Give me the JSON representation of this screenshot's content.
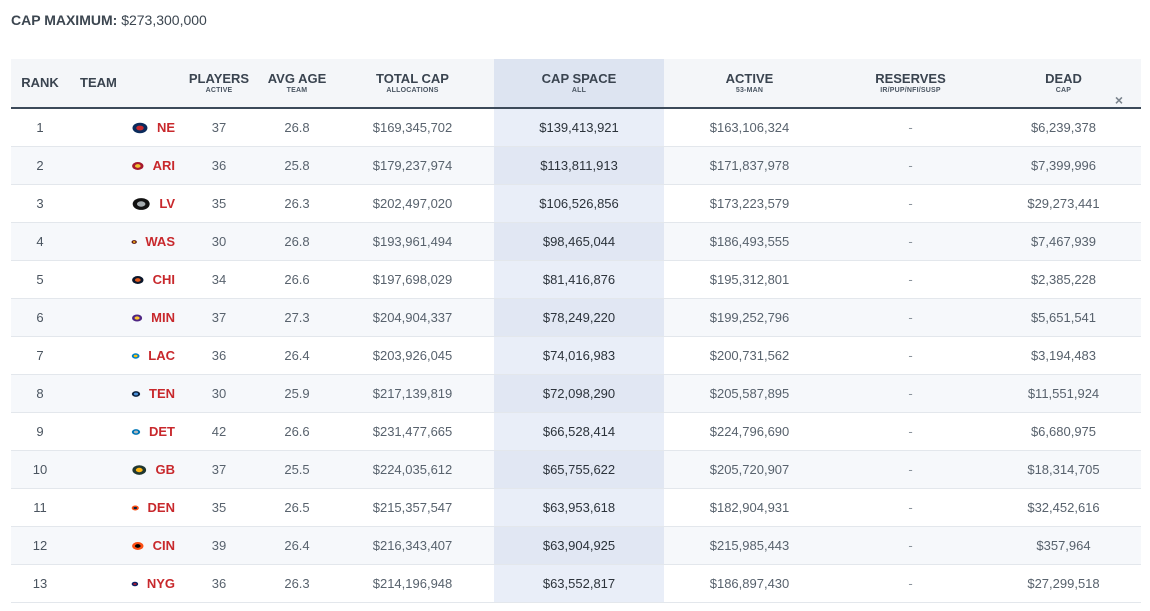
{
  "cap_max": {
    "label": "CAP MAXIMUM:",
    "value": "$273,300,000"
  },
  "headers": {
    "rank": "RANK",
    "team": "TEAM",
    "players": "PLAYERS",
    "players_sub": "ACTIVE",
    "avg_age": "AVG AGE",
    "avg_age_sub": "TEAM",
    "total_cap": "TOTAL CAP",
    "total_cap_sub": "ALLOCATIONS",
    "cap_space": "CAP SPACE",
    "cap_space_sub": "ALL",
    "active": "ACTIVE",
    "active_sub": "53-MAN",
    "reserves": "RESERVES",
    "reserves_sub": "IR/PUP/NFI/SUSP",
    "dead": "DEAD",
    "dead_sub": "CAP",
    "close": "×"
  },
  "rows": [
    {
      "rank": "1",
      "team": "NE",
      "players": "37",
      "age": "26.8",
      "total": "$169,345,702",
      "space": "$139,413,921",
      "active": "$163,106,324",
      "reserves": "-",
      "dead": "$6,239,378",
      "logo": "patriots-logo-icon",
      "c1": "#0b2b5c",
      "c2": "#c8282c"
    },
    {
      "rank": "2",
      "team": "ARI",
      "players": "36",
      "age": "25.8",
      "total": "$179,237,974",
      "space": "$113,811,913",
      "active": "$171,837,978",
      "reserves": "-",
      "dead": "$7,399,996",
      "logo": "cardinals-logo-icon",
      "c1": "#a6192e",
      "c2": "#f2c230"
    },
    {
      "rank": "3",
      "team": "LV",
      "players": "35",
      "age": "26.3",
      "total": "$202,497,020",
      "space": "$106,526,856",
      "active": "$173,223,579",
      "reserves": "-",
      "dead": "$29,273,441",
      "logo": "raiders-logo-icon",
      "c1": "#111111",
      "c2": "#a5acaf"
    },
    {
      "rank": "4",
      "team": "WAS",
      "players": "30",
      "age": "26.8",
      "total": "$193,961,494",
      "space": "$98,465,044",
      "active": "$186,493,555",
      "reserves": "-",
      "dead": "$7,467,939",
      "logo": "commanders-logo-icon",
      "c1": "#5a1414",
      "c2": "#ffb612"
    },
    {
      "rank": "5",
      "team": "CHI",
      "players": "34",
      "age": "26.6",
      "total": "$197,698,029",
      "space": "$81,416,876",
      "active": "$195,312,801",
      "reserves": "-",
      "dead": "$2,385,228",
      "logo": "bears-logo-icon",
      "c1": "#0b162a",
      "c2": "#e35a1e"
    },
    {
      "rank": "6",
      "team": "MIN",
      "players": "37",
      "age": "27.3",
      "total": "$204,904,337",
      "space": "$78,249,220",
      "active": "$199,252,796",
      "reserves": "-",
      "dead": "$5,651,541",
      "logo": "vikings-logo-icon",
      "c1": "#4f2683",
      "c2": "#ffc62f"
    },
    {
      "rank": "7",
      "team": "LAC",
      "players": "36",
      "age": "26.4",
      "total": "$203,926,045",
      "space": "$74,016,983",
      "active": "$200,731,562",
      "reserves": "-",
      "dead": "$3,194,483",
      "logo": "chargers-logo-icon",
      "c1": "#0080c6",
      "c2": "#ffc20e"
    },
    {
      "rank": "8",
      "team": "TEN",
      "players": "30",
      "age": "25.9",
      "total": "$217,139,819",
      "space": "$72,098,290",
      "active": "$205,587,895",
      "reserves": "-",
      "dead": "$11,551,924",
      "logo": "titans-logo-icon",
      "c1": "#0c2340",
      "c2": "#4b92db"
    },
    {
      "rank": "9",
      "team": "DET",
      "players": "42",
      "age": "26.6",
      "total": "$231,477,665",
      "space": "$66,528,414",
      "active": "$224,796,690",
      "reserves": "-",
      "dead": "$6,680,975",
      "logo": "lions-logo-icon",
      "c1": "#0076b6",
      "c2": "#b0b7bc"
    },
    {
      "rank": "10",
      "team": "GB",
      "players": "37",
      "age": "25.5",
      "total": "$224,035,612",
      "space": "$65,755,622",
      "active": "$205,720,907",
      "reserves": "-",
      "dead": "$18,314,705",
      "logo": "packers-logo-icon",
      "c1": "#203731",
      "c2": "#ffb612"
    },
    {
      "rank": "11",
      "team": "DEN",
      "players": "35",
      "age": "26.5",
      "total": "$215,357,547",
      "space": "$63,953,618",
      "active": "$182,904,931",
      "reserves": "-",
      "dead": "$32,452,616",
      "logo": "broncos-logo-icon",
      "c1": "#fb4f14",
      "c2": "#002244"
    },
    {
      "rank": "12",
      "team": "CIN",
      "players": "39",
      "age": "26.4",
      "total": "$216,343,407",
      "space": "$63,904,925",
      "active": "$215,985,443",
      "reserves": "-",
      "dead": "$357,964",
      "logo": "bengals-logo-icon",
      "c1": "#fb4f14",
      "c2": "#000000"
    },
    {
      "rank": "13",
      "team": "NYG",
      "players": "36",
      "age": "26.3",
      "total": "$214,196,948",
      "space": "$63,552,817",
      "active": "$186,897,430",
      "reserves": "-",
      "dead": "$27,299,518",
      "logo": "giants-logo-icon",
      "c1": "#0b2265",
      "c2": "#a71930"
    }
  ]
}
